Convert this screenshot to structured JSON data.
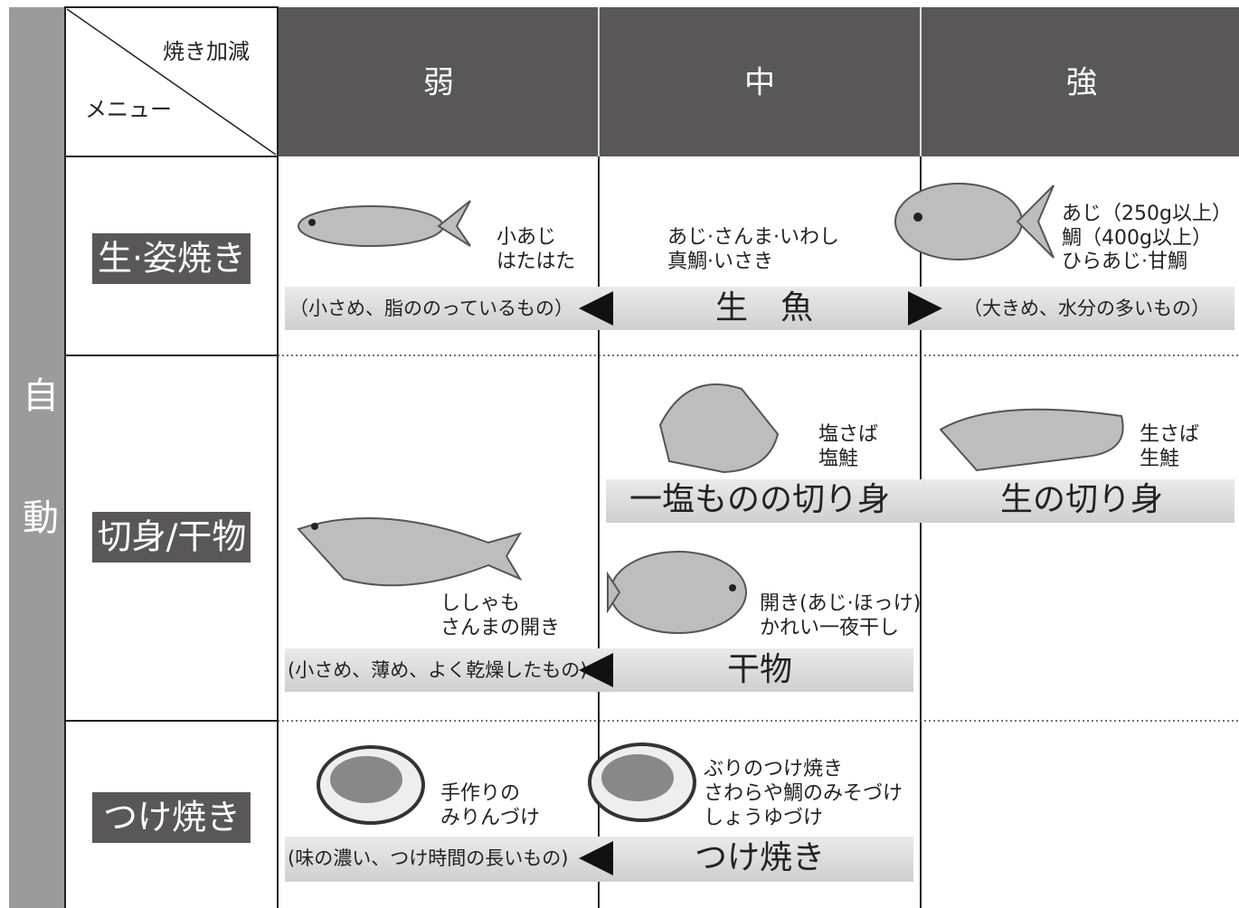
{
  "side_label": "自動",
  "header": {
    "corner_top": "焼き加減",
    "corner_bottom": "メニュー",
    "columns": [
      "弱",
      "中",
      "強"
    ]
  },
  "rows": [
    {
      "menu": "生·姿焼き",
      "items": [
        [
          "小あじ",
          "はたはた"
        ],
        [
          "あじ·さんま·いわし",
          "真鯛·いさき"
        ],
        [
          "あじ（250g以上）",
          "鯛（400g以上）",
          "ひらあじ·甘鯛"
        ]
      ],
      "band": {
        "left_note": "（小さめ、脂ののっているもの）",
        "label": "生　魚",
        "right_note": "（大きめ、水分の多いもの）"
      }
    },
    {
      "menu": "切身/干物",
      "items": [
        [
          "塩さば",
          "塩鮭"
        ],
        [
          "生さば",
          "生鮭"
        ],
        [
          "ししゃも",
          "さんまの開き"
        ],
        [
          "開き(あじ·ほっけ)",
          "かれい一夜干し"
        ]
      ],
      "upper_band": {
        "labels": [
          "一塩ものの切り身",
          "生の切り身"
        ]
      },
      "band": {
        "left_note": "(小さめ、薄め、よく乾燥したもの)",
        "label": "干物"
      }
    },
    {
      "menu": "つけ焼き",
      "items": [
        [
          "手作りの",
          "みりんづけ"
        ],
        [
          "ぶりのつけ焼き",
          "さわらや鯛のみそづけ",
          "しょうゆづけ"
        ]
      ],
      "band": {
        "left_note": "(味の濃い、つけ時間の長いもの)",
        "label": "つけ焼き"
      }
    }
  ]
}
